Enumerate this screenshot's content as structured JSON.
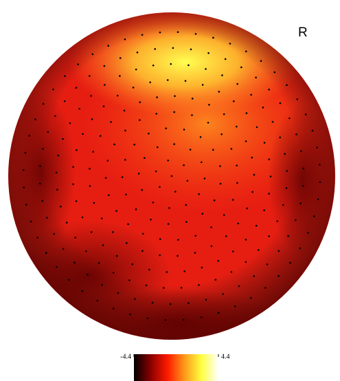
{
  "chart_data": {
    "type": "topomap",
    "annotation": "R",
    "clim": [
      -4.4,
      4.4
    ],
    "cticks": [
      -4.4,
      4.4
    ],
    "colormap": [
      "#000000",
      "#8a0000",
      "#ff1a00",
      "#ff9a1a",
      "#ffff40",
      "#ffffff"
    ]
  }
}
